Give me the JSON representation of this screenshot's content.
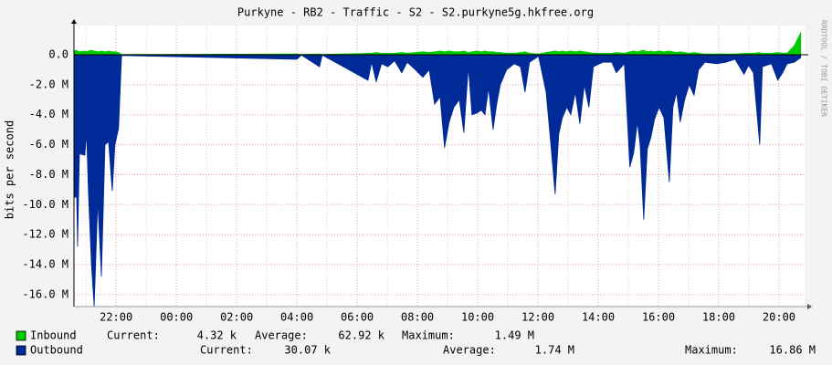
{
  "chart_data": {
    "type": "area",
    "title": "Purkyne - RB2 - Traffic - S2 - S2.purkyne5g.hkfree.org",
    "y_label": "bits per second",
    "watermark": "RRDTOOL / TOBI OETIKER",
    "grid": true,
    "x": [
      20.6,
      20.69,
      20.72,
      20.78,
      20.96,
      21.02,
      21.08,
      21.18,
      21.27,
      21.39,
      21.51,
      21.63,
      21.75,
      21.87,
      21.96,
      22.08,
      22.18,
      28.0,
      28.15,
      28.75,
      28.84,
      30.36,
      30.48,
      30.63,
      30.81,
      31.02,
      31.24,
      31.48,
      31.66,
      31.93,
      32.18,
      32.39,
      32.57,
      32.75,
      32.9,
      33.05,
      33.21,
      33.39,
      33.54,
      33.69,
      33.81,
      33.96,
      34.12,
      34.24,
      34.36,
      34.51,
      34.63,
      34.75,
      34.96,
      35.21,
      35.42,
      35.57,
      35.72,
      36.02,
      36.27,
      36.42,
      36.57,
      36.69,
      36.81,
      36.96,
      37.09,
      37.24,
      37.39,
      37.54,
      37.69,
      37.84,
      38.15,
      38.45,
      38.6,
      38.87,
      39.05,
      39.18,
      39.3,
      39.39,
      39.51,
      39.63,
      39.75,
      39.87,
      40.02,
      40.18,
      40.36,
      40.48,
      40.6,
      40.72,
      40.87,
      41.02,
      41.18,
      41.33,
      41.54,
      41.93,
      42.24,
      42.54,
      42.84,
      42.99,
      43.15,
      43.36,
      43.45,
      43.75,
      43.96,
      44.12,
      44.27,
      44.51,
      44.72
    ],
    "series": [
      {
        "name": "Outbound",
        "color": "#002a97",
        "values": [
          -9500000.0,
          -9500000.0,
          -12800000.0,
          -6600000.0,
          -6700000.0,
          -5200000.0,
          -9200000.0,
          -14000000.0,
          -16800000.0,
          -9700000.0,
          -14800000.0,
          -6000000.0,
          -5800000.0,
          -9100000.0,
          -6000000.0,
          -4900000.0,
          -50000.0,
          -300000.0,
          -20000.0,
          -800000.0,
          -20000.0,
          -1700000.0,
          -500000.0,
          -1800000.0,
          -600000.0,
          -800000.0,
          -400000.0,
          -1200000.0,
          -500000.0,
          -1000000.0,
          -1500000.0,
          -1000000.0,
          -3300000.0,
          -2800000.0,
          -6200000.0,
          -4500000.0,
          -3500000.0,
          -3000000.0,
          -5200000.0,
          -800000.0,
          -4000000.0,
          -3900000.0,
          -3700000.0,
          -4000000.0,
          -2200000.0,
          -5000000.0,
          -3300000.0,
          -2000000.0,
          -1000000.0,
          -600000.0,
          -800000.0,
          -2500000.0,
          -500000.0,
          -100000.0,
          -2500000.0,
          -5800000.0,
          -9300000.0,
          -5300000.0,
          -4200000.0,
          -3500000.0,
          -4000000.0,
          -2500000.0,
          -4600000.0,
          -2000000.0,
          -3500000.0,
          -800000.0,
          -500000.0,
          -500000.0,
          -1200000.0,
          -600000.0,
          -7500000.0,
          -6500000.0,
          -4500000.0,
          -6000000.0,
          -11000000.0,
          -6300000.0,
          -5500000.0,
          -4300000.0,
          -3500000.0,
          -4200000.0,
          -8500000.0,
          -3500000.0,
          -2500000.0,
          -4500000.0,
          -3000000.0,
          -2000000.0,
          -2700000.0,
          -1000000.0,
          -500000.0,
          -600000.0,
          -500000.0,
          -300000.0,
          -1300000.0,
          -700000.0,
          -1200000.0,
          -6000000.0,
          -800000.0,
          -600000.0,
          -1700000.0,
          -1200000.0,
          -600000.0,
          -500000.0,
          -200000.0
        ],
        "stats": [
          {
            "label": "Current:",
            "value": "30.07 k"
          },
          {
            "label": "Average:",
            "value": "1.74 M"
          },
          {
            "label": "Maximum:",
            "value": "16.86 M"
          }
        ]
      },
      {
        "name": "Inbound",
        "color": "#00cc00",
        "values": [
          250000.0,
          300000.0,
          250000.0,
          200000.0,
          250000.0,
          200000.0,
          250000.0,
          300000.0,
          250000.0,
          200000.0,
          250000.0,
          200000.0,
          250000.0,
          200000.0,
          200000.0,
          150000.0,
          20000.0,
          50000.0,
          20000.0,
          50000.0,
          20000.0,
          100000.0,
          100000.0,
          150000.0,
          100000.0,
          100000.0,
          100000.0,
          150000.0,
          100000.0,
          150000.0,
          200000.0,
          150000.0,
          200000.0,
          250000.0,
          200000.0,
          250000.0,
          200000.0,
          200000.0,
          250000.0,
          150000.0,
          200000.0,
          250000.0,
          200000.0,
          250000.0,
          200000.0,
          200000.0,
          150000.0,
          150000.0,
          100000.0,
          100000.0,
          150000.0,
          200000.0,
          100000.0,
          50000.0,
          150000.0,
          200000.0,
          250000.0,
          200000.0,
          250000.0,
          200000.0,
          250000.0,
          200000.0,
          250000.0,
          200000.0,
          150000.0,
          100000.0,
          100000.0,
          100000.0,
          150000.0,
          100000.0,
          200000.0,
          250000.0,
          200000.0,
          250000.0,
          300000.0,
          200000.0,
          250000.0,
          200000.0,
          250000.0,
          200000.0,
          250000.0,
          200000.0,
          150000.0,
          200000.0,
          150000.0,
          100000.0,
          150000.0,
          100000.0,
          50000.0,
          50000.0,
          50000.0,
          50000.0,
          100000.0,
          100000.0,
          100000.0,
          150000.0,
          100000.0,
          100000.0,
          150000.0,
          100000.0,
          100000.0,
          600000.0,
          1490000.0
        ],
        "stats": [
          {
            "label": "Current:",
            "value": "4.32 k"
          },
          {
            "label": "Average:",
            "value": "62.92 k"
          },
          {
            "label": "Maximum:",
            "value": "1.49 M"
          }
        ]
      }
    ],
    "xlim": [
      20.6,
      44.85
    ],
    "xticks": [
      {
        "value": 22,
        "label": "22:00"
      },
      {
        "value": 24,
        "label": "00:00"
      },
      {
        "value": 26,
        "label": "02:00"
      },
      {
        "value": 28,
        "label": "04:00"
      },
      {
        "value": 30,
        "label": "06:00"
      },
      {
        "value": 32,
        "label": "08:00"
      },
      {
        "value": 34,
        "label": "10:00"
      },
      {
        "value": 36,
        "label": "12:00"
      },
      {
        "value": 38,
        "label": "14:00"
      },
      {
        "value": 40,
        "label": "16:00"
      },
      {
        "value": 42,
        "label": "18:00"
      },
      {
        "value": 44,
        "label": "20:00"
      }
    ],
    "x_minor_ticks": [
      21,
      23,
      25,
      27,
      29,
      31,
      33,
      35,
      37,
      39,
      41,
      43
    ],
    "ylim": [
      -16800000.0,
      1950000.0
    ],
    "yticks": [
      {
        "value": 0,
        "label": "0.0"
      },
      {
        "value": -2000000.0,
        "label": "-2.0 M"
      },
      {
        "value": -4000000.0,
        "label": "-4.0 M"
      },
      {
        "value": -6000000.0,
        "label": "-6.0 M"
      },
      {
        "value": -8000000.0,
        "label": "-8.0 M"
      },
      {
        "value": -10000000.0,
        "label": "-10.0 M"
      },
      {
        "value": -12000000.0,
        "label": "-12.0 M"
      },
      {
        "value": -14000000.0,
        "label": "-14.0 M"
      },
      {
        "value": -16000000.0,
        "label": "-16.0 M"
      }
    ]
  }
}
